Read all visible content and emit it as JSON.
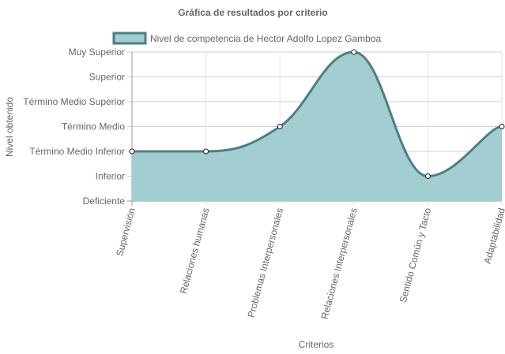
{
  "chart_data": {
    "type": "area",
    "title": "Gráfica de resultados por criterio",
    "xlabel": "Criterios",
    "ylabel": "Nivel obtenido",
    "categories": [
      "Supervisión",
      "Relaciones humanas",
      "Problemas Interpersonales",
      "Relaciones Interpersonales",
      "Sentido Común y Tacto",
      "Adaptabilidad"
    ],
    "y_levels": [
      "Deficiente",
      "Inferior",
      "Término Medio Inferior",
      "Término Medio",
      "Término Medio Superior",
      "Superior",
      "Muy Superior"
    ],
    "ylim": [
      0,
      6
    ],
    "series": [
      {
        "name": "Nivel de competencia de Hector Adolfo Lopez Gamboa",
        "values": [
          2,
          2,
          3,
          6,
          1,
          3
        ],
        "line_color": "#4d7f83",
        "fill_color": "#a2cdd1"
      }
    ],
    "legend": "top",
    "grid": true
  }
}
